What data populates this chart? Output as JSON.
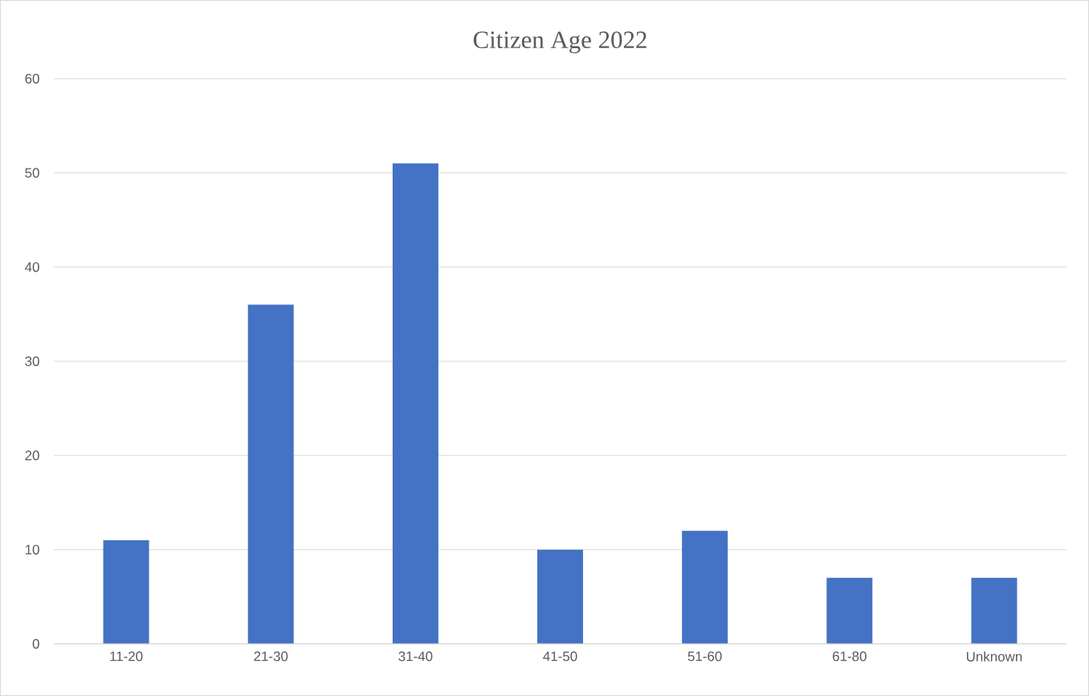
{
  "chart_data": {
    "type": "bar",
    "title": "Citizen Age 2022",
    "categories": [
      "11-20",
      "21-30",
      "31-40",
      "41-50",
      "51-60",
      "61-80",
      "Unknown"
    ],
    "values": [
      11,
      36,
      51,
      10,
      12,
      7,
      7
    ],
    "color": "#4472c4",
    "ylim": [
      0,
      60
    ],
    "yticks": [
      0,
      10,
      20,
      30,
      40,
      50,
      60
    ],
    "grid": "y"
  }
}
